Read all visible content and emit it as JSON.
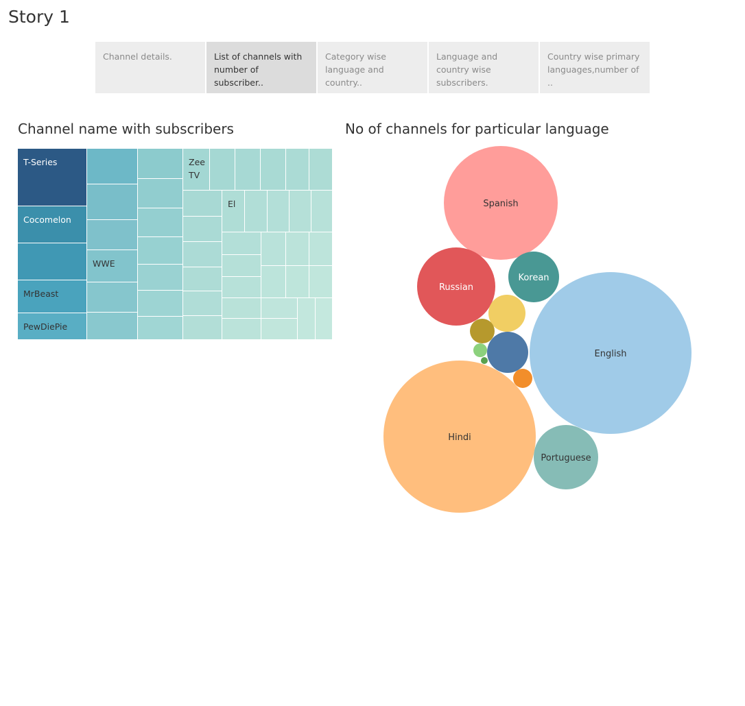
{
  "story": {
    "title": "Story 1"
  },
  "navigator": {
    "tabs": [
      {
        "label": "Channel details.",
        "active": false
      },
      {
        "label": "List of channels with number of subscriber..",
        "active": true
      },
      {
        "label": "Category wise language and country..",
        "active": false
      },
      {
        "label": "Language and country wise subscribers.",
        "active": false
      },
      {
        "label": "Country wise primary languages,number of ..",
        "active": false
      }
    ]
  },
  "chart_data": [
    {
      "type": "treemap",
      "title": "Channel name with subscribers",
      "labeled_channels": [
        "T-Series",
        "Cocomelon",
        "MrBeast",
        "PewDiePie",
        "WWE",
        "Zee TV",
        "El"
      ],
      "legend": "none",
      "color_scale": {
        "high": "#2c5985",
        "low": "#c0e8dc"
      }
    },
    {
      "type": "bubble",
      "title": "No of channels for particular language",
      "legend": "none",
      "bubbles": [
        {
          "label": "English",
          "relative_size": 1.0,
          "color": "#a0cbe8"
        },
        {
          "label": "Hindi",
          "relative_size": 0.89,
          "color": "#ffbe7d"
        },
        {
          "label": "Spanish",
          "relative_size": 0.49,
          "color": "#ff9d9a"
        },
        {
          "label": "Russian",
          "relative_size": 0.23,
          "color": "#e15759"
        },
        {
          "label": "Portuguese",
          "relative_size": 0.16,
          "color": "#86bcb6"
        },
        {
          "label": "Korean",
          "relative_size": 0.1,
          "color": "#499894"
        },
        {
          "label": "",
          "relative_size": 0.07,
          "color": "#4e79a7"
        },
        {
          "label": "",
          "relative_size": 0.053,
          "color": "#f1ce63"
        },
        {
          "label": "",
          "relative_size": 0.024,
          "color": "#b6992d"
        },
        {
          "label": "",
          "relative_size": 0.014,
          "color": "#f28e2b"
        },
        {
          "label": "",
          "relative_size": 0.0017,
          "color": "#8cd17d"
        },
        {
          "label": "",
          "relative_size": 0.0007,
          "color": "#59a14f"
        }
      ]
    }
  ]
}
